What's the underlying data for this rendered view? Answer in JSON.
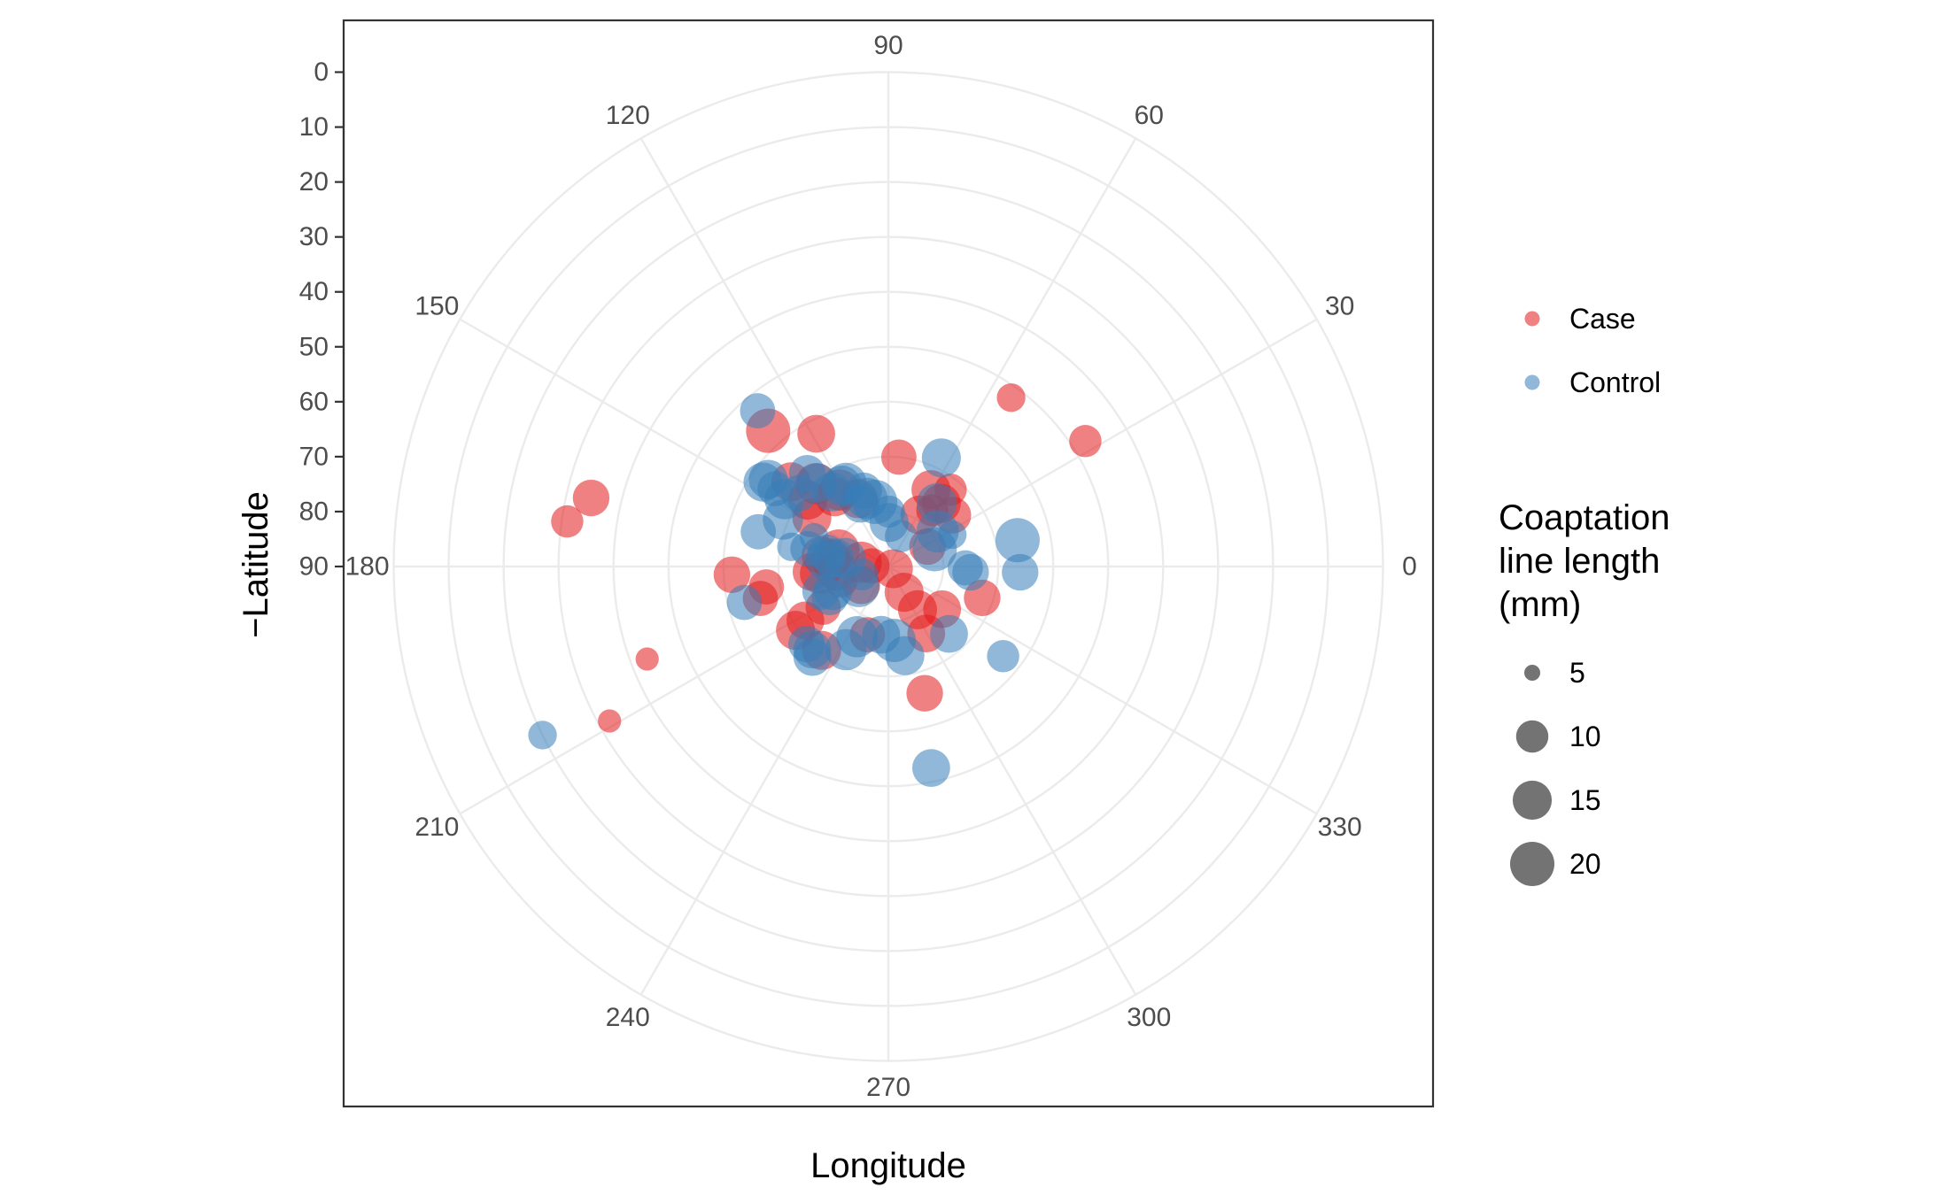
{
  "chart_data": {
    "type": "scatter",
    "coord": "polar",
    "xlabel": "Longitude",
    "ylabel": "−Latitude",
    "longitude_ticks": [
      "90",
      "60",
      "30",
      "0",
      "330",
      "300",
      "270",
      "240",
      "210",
      "180",
      "150",
      "120"
    ],
    "longitude_tick_values": [
      90,
      60,
      30,
      0,
      330,
      300,
      270,
      240,
      210,
      180,
      150,
      120
    ],
    "latitude_ticks": [
      "90",
      "80",
      "70",
      "60",
      "50",
      "40",
      "30",
      "20",
      "10",
      "0"
    ],
    "latitude_tick_values": [
      90,
      80,
      70,
      60,
      50,
      40,
      30,
      20,
      10,
      0
    ],
    "ylim": [
      0,
      90
    ],
    "grid": true,
    "legend_position": "right",
    "colors": {
      "Case": "#E41A1C",
      "Control": "#377EB8"
    },
    "color_legend": [
      {
        "label": "Case",
        "color": "#E41A1C"
      },
      {
        "label": "Control",
        "color": "#377EB8"
      }
    ],
    "size_legend": {
      "title_lines": [
        "Coaptation",
        "line length",
        "(mm)"
      ],
      "entries": [
        {
          "label": "5",
          "value": 5
        },
        {
          "label": "10",
          "value": 10
        },
        {
          "label": "15",
          "value": 15
        },
        {
          "label": "20",
          "value": 20
        }
      ]
    },
    "series": [
      {
        "name": "Case",
        "points": [
          {
            "lon": 58.5,
            "lat": 79,
            "size": 15
          },
          {
            "lon": 61,
            "lat": 74,
            "size": 15
          },
          {
            "lon": 84.5,
            "lat": 70,
            "size": 12
          },
          {
            "lon": 52,
            "lat": 77,
            "size": 10
          },
          {
            "lon": 50,
            "lat": 75,
            "size": 15
          },
          {
            "lon": 51,
            "lat": 72,
            "size": 10
          },
          {
            "lon": 54,
            "lat": 52,
            "size": 8
          },
          {
            "lon": 38.5,
            "lat": 75,
            "size": 13
          },
          {
            "lon": 27,
            "lat": 82,
            "size": 13
          },
          {
            "lon": 32.5,
            "lat": 47.5,
            "size": 10
          },
          {
            "lon": 336,
            "lat": 89,
            "size": 15
          },
          {
            "lon": 341.5,
            "lat": 72,
            "size": 13
          },
          {
            "lon": 321.5,
            "lat": 77.5,
            "size": 14
          },
          {
            "lon": 299.5,
            "lat": 76,
            "size": 14
          },
          {
            "lon": 304,
            "lat": 80.5,
            "size": 15
          },
          {
            "lon": 301.5,
            "lat": 84.5,
            "size": 15
          },
          {
            "lon": 286,
            "lat": 66,
            "size": 13
          },
          {
            "lon": 253,
            "lat": 77,
            "size": 12
          },
          {
            "lon": 122.5,
            "lat": 73.5,
            "size": 17
          },
          {
            "lon": 114,
            "lat": 76.5,
            "size": 15
          },
          {
            "lon": 127.5,
            "lat": 74,
            "size": 15
          },
          {
            "lon": 118.5,
            "lat": 62.5,
            "size": 14
          },
          {
            "lon": 131,
            "lat": 70,
            "size": 17
          },
          {
            "lon": 140.5,
            "lat": 71,
            "size": 15
          },
          {
            "lon": 139,
            "lat": 66.5,
            "size": 15
          },
          {
            "lon": 147.5,
            "lat": 73.5,
            "size": 15
          },
          {
            "lon": 131.5,
            "lat": 57,
            "size": 20
          },
          {
            "lon": 161.5,
            "lat": 80.5,
            "size": 17
          },
          {
            "lon": 171,
            "lat": 85,
            "size": 17
          },
          {
            "lon": 173,
            "lat": 79.5,
            "size": 16
          },
          {
            "lon": 170.5,
            "lat": 77.5,
            "size": 14
          },
          {
            "lon": 176,
            "lat": 79.5,
            "size": 12
          },
          {
            "lon": 178,
            "lat": 87,
            "size": 12
          },
          {
            "lon": 184,
            "lat": 80.5,
            "size": 17
          },
          {
            "lon": 186,
            "lat": 77.5,
            "size": 16
          },
          {
            "lon": 184,
            "lat": 76,
            "size": 14
          },
          {
            "lon": 183,
            "lat": 61.5,
            "size": 13
          },
          {
            "lon": 167,
            "lat": 34.5,
            "size": 13
          },
          {
            "lon": 172,
            "lat": 31,
            "size": 10
          },
          {
            "lon": 189.5,
            "lat": 67.5,
            "size": 12
          },
          {
            "lon": 194,
            "lat": 66,
            "size": 12
          },
          {
            "lon": 201,
            "lat": 43,
            "size": 6
          },
          {
            "lon": 209,
            "lat": 32,
            "size": 6
          },
          {
            "lon": 197.5,
            "lat": 81,
            "size": 10
          },
          {
            "lon": 213,
            "lat": 72,
            "size": 14
          },
          {
            "lon": 214.5,
            "lat": 69.5,
            "size": 15
          },
          {
            "lon": 212,
            "lat": 76,
            "size": 12
          },
          {
            "lon": 214.5,
            "lat": 84,
            "size": 14
          },
          {
            "lon": 231.5,
            "lat": 70.5,
            "size": 15
          }
        ]
      },
      {
        "name": "Control",
        "points": [
          {
            "lon": 89,
            "lat": 82,
            "size": 15
          },
          {
            "lon": 89.5,
            "lat": 80,
            "size": 10
          },
          {
            "lon": 101.5,
            "lat": 78,
            "size": 20
          },
          {
            "lon": 67.5,
            "lat": 84,
            "size": 10
          },
          {
            "lon": 52.5,
            "lat": 75.5,
            "size": 16
          },
          {
            "lon": 64,
            "lat": 68,
            "size": 15
          },
          {
            "lon": 35.5,
            "lat": 79,
            "size": 18
          },
          {
            "lon": 26.5,
            "lat": 77,
            "size": 8
          },
          {
            "lon": 20.5,
            "lat": 81,
            "size": 20
          },
          {
            "lon": 11.5,
            "lat": 66,
            "size": 20
          },
          {
            "lon": 357.5,
            "lat": 66,
            "size": 13
          },
          {
            "lon": 359,
            "lat": 76,
            "size": 12
          },
          {
            "lon": 356,
            "lat": 75,
            "size": 13
          },
          {
            "lon": 322,
            "lat": 63.5,
            "size": 10
          },
          {
            "lon": 312,
            "lat": 73.5,
            "size": 14
          },
          {
            "lon": 282,
            "lat": 52.5,
            "size": 14
          },
          {
            "lon": 280.5,
            "lat": 73.5,
            "size": 15
          },
          {
            "lon": 274.5,
            "lat": 76.5,
            "size": 19
          },
          {
            "lon": 264,
            "lat": 77.5,
            "size": 14
          },
          {
            "lon": 246,
            "lat": 76,
            "size": 17
          },
          {
            "lon": 243,
            "lat": 73,
            "size": 17
          },
          {
            "lon": 230,
            "lat": 68.5,
            "size": 14
          },
          {
            "lon": 207.5,
            "lat": 78,
            "size": 13
          },
          {
            "lon": 203.5,
            "lat": 79,
            "size": 15
          },
          {
            "lon": 200,
            "lat": 77,
            "size": 14
          },
          {
            "lon": 194,
            "lat": 63,
            "size": 12
          },
          {
            "lon": 196.5,
            "lat": 85,
            "size": 10
          },
          {
            "lon": 214,
            "lat": 83.5,
            "size": 17
          },
          {
            "lon": 227.5,
            "lat": 69.5,
            "size": 14
          },
          {
            "lon": 223.5,
            "lat": 69.5,
            "size": 13
          },
          {
            "lon": 206,
            "lat": 20,
            "size": 8
          },
          {
            "lon": 165,
            "lat": 65.5,
            "size": 12
          },
          {
            "lon": 174,
            "lat": 78.5,
            "size": 16
          },
          {
            "lon": 171.5,
            "lat": 80,
            "size": 16
          },
          {
            "lon": 169.5,
            "lat": 82,
            "size": 17
          },
          {
            "lon": 168,
            "lat": 78.5,
            "size": 14
          },
          {
            "lon": 167.5,
            "lat": 75,
            "size": 12
          },
          {
            "lon": 168.5,
            "lat": 72,
            "size": 8
          },
          {
            "lon": 158.5,
            "lat": 75.5,
            "size": 8
          },
          {
            "lon": 156,
            "lat": 69,
            "size": 16
          },
          {
            "lon": 147,
            "lat": 67.5,
            "size": 16
          },
          {
            "lon": 146,
            "lat": 62.5,
            "size": 15
          },
          {
            "lon": 145.5,
            "lat": 65,
            "size": 12
          },
          {
            "lon": 144,
            "lat": 63,
            "size": 15
          },
          {
            "lon": 140.5,
            "lat": 69,
            "size": 13
          },
          {
            "lon": 130.5,
            "lat": 70,
            "size": 15
          },
          {
            "lon": 131,
            "lat": 67.5,
            "size": 13
          },
          {
            "lon": 127,
            "lat": 73,
            "size": 15
          },
          {
            "lon": 120,
            "lat": 73,
            "size": 16
          },
          {
            "lon": 117,
            "lat": 73,
            "size": 17
          },
          {
            "lon": 114,
            "lat": 77.5,
            "size": 14
          },
          {
            "lon": 107.5,
            "lat": 77,
            "size": 17
          },
          {
            "lon": 108,
            "lat": 75.5,
            "size": 13
          },
          {
            "lon": 130,
            "lat": 53,
            "size": 12
          }
        ]
      }
    ]
  }
}
